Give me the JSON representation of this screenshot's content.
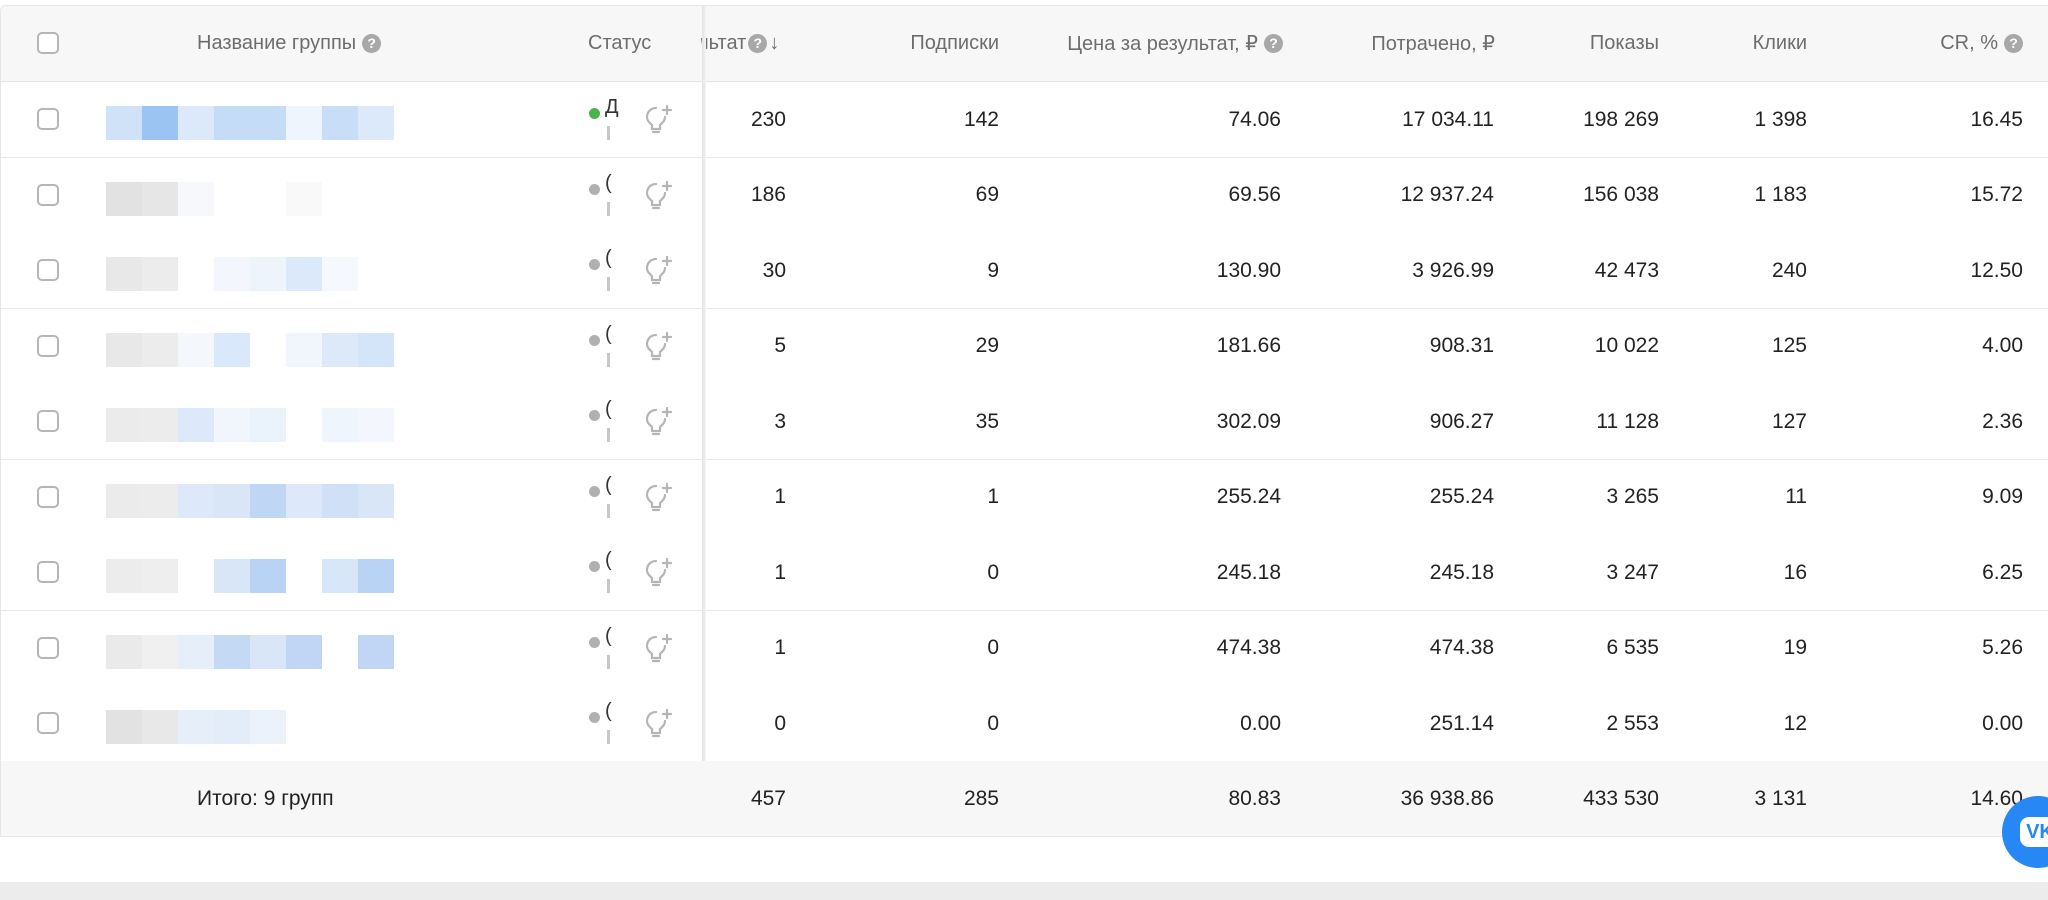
{
  "header": {
    "name": "Название группы",
    "status": "Статус",
    "result": "льтат",
    "result_sort_arrow": "↓",
    "subscriptions": "Подписки",
    "price_per_result": "Цена за результат, ₽",
    "spent": "Потрачено, ₽",
    "impressions": "Показы",
    "clicks": "Клики",
    "cr": "CR, %",
    "help_icon_char": "?"
  },
  "colors": {
    "active_dot": "#4bb34b",
    "inactive_dot": "#b0b0b0",
    "vk_blue": "#2787f5"
  },
  "rows": [
    {
      "status_color": "#4bb34b",
      "status_char": "Д",
      "result": "230",
      "subscriptions": "142",
      "price": "74.06",
      "spent": "17 034.11",
      "impressions": "198 269",
      "clicks": "1 398",
      "cr": "16.45"
    },
    {
      "status_color": "#b0b0b0",
      "status_char": "(",
      "result": "186",
      "subscriptions": "69",
      "price": "69.56",
      "spent": "12 937.24",
      "impressions": "156 038",
      "clicks": "1 183",
      "cr": "15.72"
    },
    {
      "status_color": "#b0b0b0",
      "status_char": "(",
      "result": "30",
      "subscriptions": "9",
      "price": "130.90",
      "spent": "3 926.99",
      "impressions": "42 473",
      "clicks": "240",
      "cr": "12.50"
    },
    {
      "status_color": "#b0b0b0",
      "status_char": "(",
      "result": "5",
      "subscriptions": "29",
      "price": "181.66",
      "spent": "908.31",
      "impressions": "10 022",
      "clicks": "125",
      "cr": "4.00"
    },
    {
      "status_color": "#b0b0b0",
      "status_char": "(",
      "result": "3",
      "subscriptions": "35",
      "price": "302.09",
      "spent": "906.27",
      "impressions": "11 128",
      "clicks": "127",
      "cr": "2.36"
    },
    {
      "status_color": "#b0b0b0",
      "status_char": "(",
      "result": "1",
      "subscriptions": "1",
      "price": "255.24",
      "spent": "255.24",
      "impressions": "3 265",
      "clicks": "11",
      "cr": "9.09"
    },
    {
      "status_color": "#b0b0b0",
      "status_char": "(",
      "result": "1",
      "subscriptions": "0",
      "price": "245.18",
      "spent": "245.18",
      "impressions": "3 247",
      "clicks": "16",
      "cr": "6.25"
    },
    {
      "status_color": "#b0b0b0",
      "status_char": "(",
      "result": "1",
      "subscriptions": "0",
      "price": "474.38",
      "spent": "474.38",
      "impressions": "6 535",
      "clicks": "19",
      "cr": "5.26"
    },
    {
      "status_color": "#b0b0b0",
      "status_char": "(",
      "result": "0",
      "subscriptions": "0",
      "price": "0.00",
      "spent": "251.14",
      "impressions": "2 553",
      "clicks": "12",
      "cr": "0.00"
    }
  ],
  "footer": {
    "label": "Итого: 9 групп",
    "result": "457",
    "subscriptions": "285",
    "price": "80.83",
    "spent": "36 938.86",
    "impressions": "433 530",
    "clicks": "3 131",
    "cr": "14.60"
  },
  "vk_button": {
    "label": "VK"
  }
}
